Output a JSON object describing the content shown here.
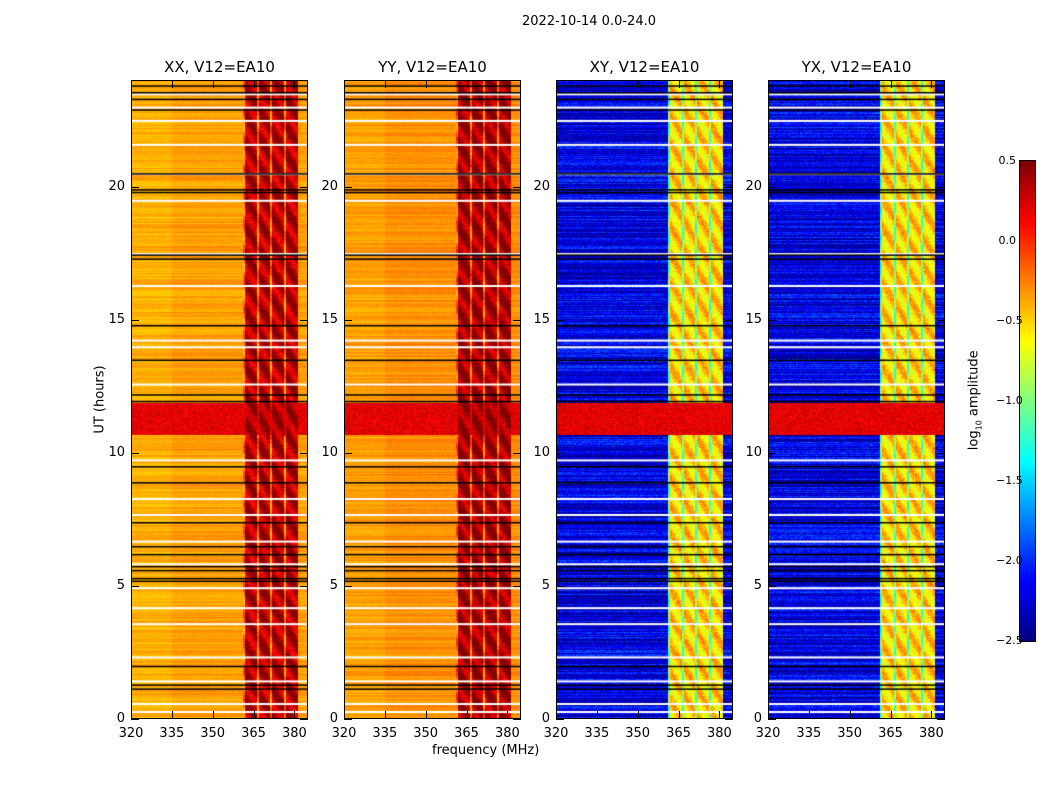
{
  "chart_data": {
    "type": "heatmap",
    "suptitle": "2022-10-14 0.0-24.0",
    "xlabel": "frequency (MHz)",
    "ylabel": "UT (hours)",
    "xlim": [
      320,
      385
    ],
    "ylim": [
      0,
      24
    ],
    "xticks": [
      "320",
      "335",
      "350",
      "365",
      "380"
    ],
    "xtick_values": [
      320,
      335,
      350,
      365,
      380
    ],
    "yticks": [
      "0",
      "5",
      "10",
      "15",
      "20"
    ],
    "ytick_values": [
      0,
      5,
      10,
      15,
      20
    ],
    "colormap": "jet",
    "colorbar": {
      "label_prefix": "log",
      "label_sub": "10",
      "label_suffix": " amplitude",
      "range": [
        -2.5,
        0.5
      ],
      "ticks": [
        "0.5",
        "0.0",
        "−0.5",
        "−1.0",
        "−1.5",
        "−2.0",
        "−2.5"
      ],
      "tick_values": [
        0.5,
        0.0,
        -0.5,
        -1.0,
        -1.5,
        -2.0,
        -2.5
      ]
    },
    "panels": [
      {
        "title": "XX, V12=EA10",
        "base_level": -0.35,
        "rfi_level": 0.35
      },
      {
        "title": "YY, V12=EA10",
        "base_level": -0.3,
        "rfi_level": 0.4
      },
      {
        "title": "XY, V12=EA10",
        "base_level": -2.2,
        "rfi_level": -0.5
      },
      {
        "title": "YX, V12=EA10",
        "base_level": -2.2,
        "rfi_level": -0.5
      }
    ],
    "rfi_band_mhz": [
      361,
      381
    ],
    "rfi_time_band_hours": [
      10.7,
      11.9
    ],
    "flagged_hours_white": [
      0.3,
      0.6,
      1.45,
      2.35,
      3.6,
      4.2,
      4.95,
      5.85,
      6.7,
      7.7,
      8.3,
      9.75,
      12.6,
      14.0,
      14.25,
      16.3,
      17.5,
      19.5,
      20.5,
      21.6,
      22.5,
      23.0,
      23.5
    ],
    "flagged_hours_black": [
      1.15,
      1.3,
      2.0,
      5.2,
      5.3,
      5.6,
      5.75,
      6.2,
      6.5,
      7.4,
      8.9,
      9.5,
      11.95,
      12.2,
      13.5,
      14.8,
      17.3,
      17.45,
      19.8,
      19.9,
      20.5,
      22.9,
      23.3,
      23.55,
      23.8
    ]
  }
}
